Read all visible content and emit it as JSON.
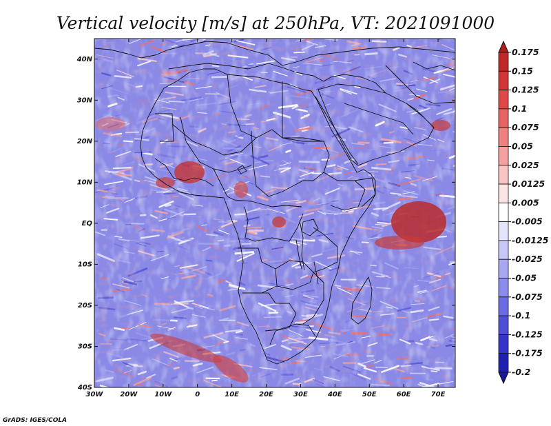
{
  "title": "Vertical velocity [m/s] at 250hPa, VT: 2021091000",
  "credit": "GrADS: IGES/COLA",
  "map": {
    "region": "Africa",
    "variable": "vertical velocity",
    "units": "m/s",
    "level": "250hPa",
    "valid_time": "2021091000",
    "lon_range": [
      -30,
      75
    ],
    "lat_range": [
      -40,
      45
    ],
    "x_ticks": [
      "30W",
      "20W",
      "10W",
      "0",
      "10E",
      "20E",
      "30E",
      "40E",
      "50E",
      "60E",
      "70E"
    ],
    "y_ticks": [
      "40N",
      "30N",
      "20N",
      "10N",
      "EQ",
      "10S",
      "20S",
      "30S",
      "40S"
    ]
  },
  "colorbar": {
    "labels": [
      "0.175",
      "0.15",
      "0.125",
      "0.1",
      "0.075",
      "0.05",
      "0.025",
      "0.0125",
      "0.005",
      "-0.005",
      "-0.0125",
      "-0.025",
      "-0.05",
      "-0.075",
      "-0.1",
      "-0.125",
      "-0.175",
      "-0.2"
    ],
    "colors": [
      "#b01c1c",
      "#c02828",
      "#d03636",
      "#e04848",
      "#e86464",
      "#ee8080",
      "#f4a0a0",
      "#f8c4c4",
      "#fce4e4",
      "#ffffff",
      "#e4e4fc",
      "#c8c8f8",
      "#a8a8f2",
      "#8c8cec",
      "#6c6ce2",
      "#4e4ed6",
      "#3434c8",
      "#2020b0",
      "#18189a"
    ],
    "base_color": "#8a8ae6"
  }
}
